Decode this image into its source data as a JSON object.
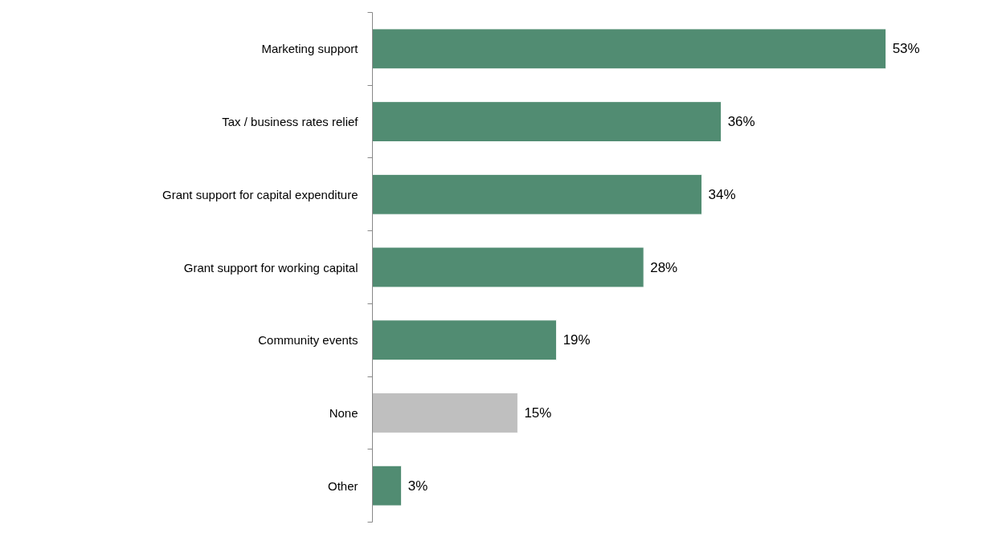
{
  "chart_data": {
    "type": "bar",
    "orientation": "horizontal",
    "categories": [
      "Marketing support",
      "Tax / business rates relief",
      "Grant support for capital expenditure",
      "Grant support for working capital",
      "Community events",
      "None",
      "Other"
    ],
    "values": [
      53,
      36,
      34,
      28,
      19,
      15,
      3
    ],
    "colors": [
      "#518c72",
      "#518c72",
      "#518c72",
      "#518c72",
      "#518c72",
      "#bfbfbf",
      "#518c72"
    ],
    "value_labels": [
      "53%",
      "36%",
      "34%",
      "28%",
      "19%",
      "15%",
      "3%"
    ],
    "grid": false
  }
}
